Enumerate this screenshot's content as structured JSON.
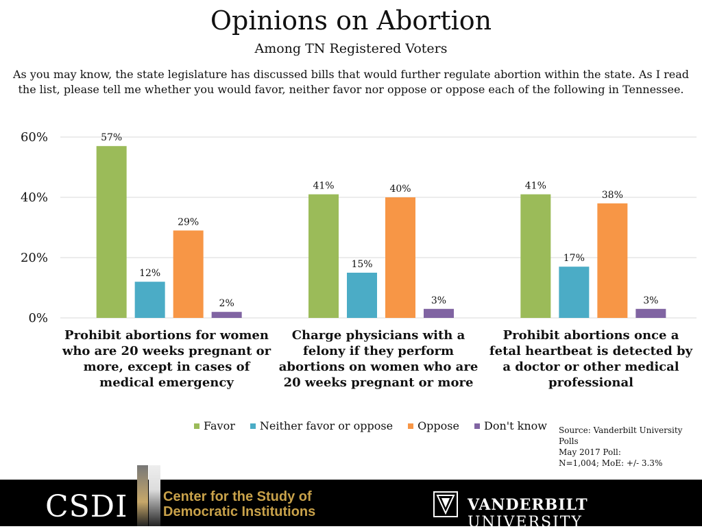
{
  "header": {
    "title": "Opinions on Abortion",
    "subtitle": "Among TN Registered Voters",
    "question": "As you may know, the state legislature has discussed bills that would further regulate abortion within the state. As I read the list, please tell me whether you would favor, neither favor nor oppose or oppose each of the following in Tennessee."
  },
  "chart_data": {
    "type": "bar",
    "title": "Opinions on Abortion",
    "categories": [
      "Prohibit abortions for women who are 20 weeks pregnant or more, except in cases of medical emergency",
      "Charge physicians with a felony if they perform abortions on women who are 20 weeks pregnant or more",
      "Prohibit abortions once a fetal heartbeat is detected by a doctor or other medical professional"
    ],
    "series": [
      {
        "name": "Favor",
        "color": "#9BBB59",
        "values": [
          57,
          41,
          41
        ]
      },
      {
        "name": "Neither favor or oppose",
        "color": "#4BACC6",
        "values": [
          12,
          15,
          17
        ]
      },
      {
        "name": "Oppose",
        "color": "#F79646",
        "values": [
          29,
          40,
          38
        ]
      },
      {
        "name": "Don't know",
        "color": "#8064A2",
        "values": [
          2,
          3,
          3
        ]
      }
    ],
    "yticks": [
      "0%",
      "20%",
      "40%",
      "60%"
    ],
    "ylim": [
      0,
      60
    ],
    "value_suffix": "%",
    "legend_position": "bottom"
  },
  "source": {
    "line1": "Source: Vanderbilt University Polls",
    "line2": "May 2017 Poll:",
    "line3": "N=1,004; MoE: +/- 3.3%"
  },
  "footer": {
    "csdi": "CSDI",
    "center_line1": "Center for the Study of",
    "center_line2": "Democratic Institutions",
    "vu_bold": "VANDERBILT",
    "vu_rest": "UNIVERSITY"
  }
}
